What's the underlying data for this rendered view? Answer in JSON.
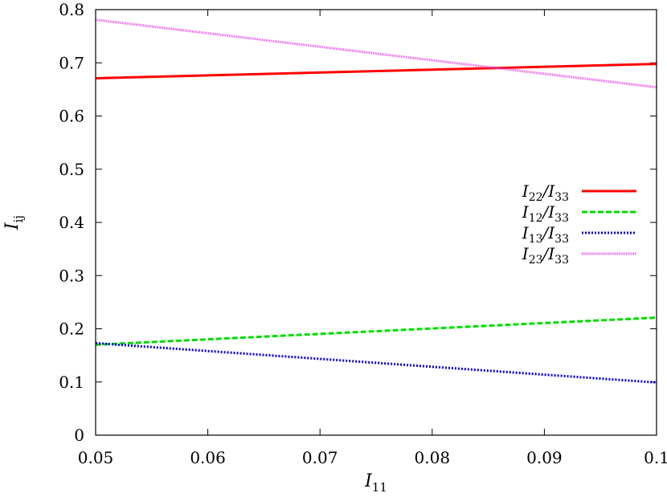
{
  "chart_data": {
    "type": "line",
    "title": "",
    "xlabel": "I",
    "xlabel_sub": "11",
    "ylabel": "I",
    "ylabel_sub": "ij",
    "xlim": [
      0.05,
      0.1
    ],
    "ylim": [
      0,
      0.8
    ],
    "xticks": [
      0.05,
      0.06,
      0.07,
      0.08,
      0.09,
      0.1
    ],
    "xtick_labels": [
      "0.05",
      "0.06",
      "0.07",
      "0.08",
      "0.09",
      "0.1"
    ],
    "yticks": [
      0,
      0.1,
      0.2,
      0.3,
      0.4,
      0.5,
      0.6,
      0.7,
      0.8
    ],
    "ytick_labels": [
      "0",
      "0.1",
      "0.2",
      "0.3",
      "0.4",
      "0.5",
      "0.6",
      "0.7",
      "0.8"
    ],
    "grid": false,
    "legend_position": "right",
    "series": [
      {
        "name_main": "I",
        "name_sub": "22",
        "name_sep": "/I",
        "name_sub2": "33",
        "color": "#ff0000",
        "dash": "solid",
        "x": [
          0.05,
          0.1
        ],
        "y": [
          0.671,
          0.698
        ]
      },
      {
        "name_main": "I",
        "name_sub": "12",
        "name_sep": "/I",
        "name_sub2": "33",
        "color": "#00dd00",
        "dash": "dashed",
        "x": [
          0.05,
          0.1
        ],
        "y": [
          0.17,
          0.221
        ]
      },
      {
        "name_main": "I",
        "name_sub": "13",
        "name_sep": "/I",
        "name_sub2": "33",
        "color": "#0000dd",
        "dash": "dotted",
        "x": [
          0.05,
          0.1
        ],
        "y": [
          0.173,
          0.099
        ]
      },
      {
        "name_main": "I",
        "name_sub": "23",
        "name_sep": "/I",
        "name_sub2": "33",
        "color": "#e040e0",
        "dash": "fine",
        "x": [
          0.05,
          0.1
        ],
        "y": [
          0.781,
          0.654
        ]
      }
    ]
  }
}
